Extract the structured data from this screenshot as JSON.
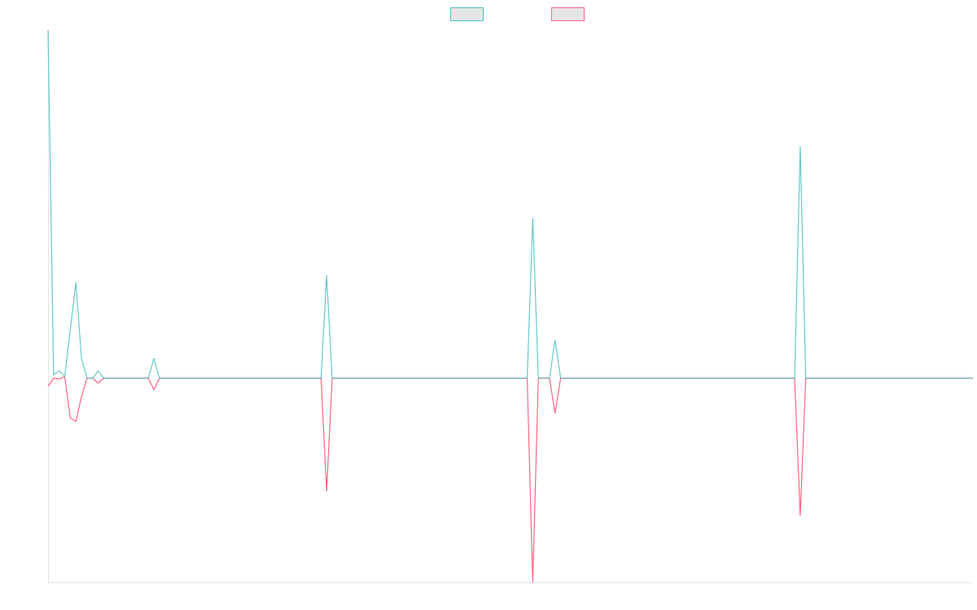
{
  "chart_data": {
    "type": "line",
    "ylim": [
      -251,
      428
    ],
    "legend": "top",
    "series": [
      {
        "color": "#4bc0c0",
        "values": [
          428,
          4,
          9,
          2,
          60,
          118,
          24,
          0,
          0,
          9,
          0,
          0,
          0,
          0,
          0,
          0,
          0,
          0,
          0,
          24,
          0,
          0,
          0,
          0,
          0,
          0,
          0,
          0,
          0,
          0,
          0,
          0,
          0,
          0,
          0,
          0,
          0,
          0,
          0,
          0,
          0,
          0,
          0,
          0,
          0,
          0,
          0,
          0,
          0,
          0,
          127,
          0,
          0,
          0,
          0,
          0,
          0,
          0,
          0,
          0,
          0,
          0,
          0,
          0,
          0,
          0,
          0,
          0,
          0,
          0,
          0,
          0,
          0,
          0,
          0,
          0,
          0,
          0,
          0,
          0,
          0,
          0,
          0,
          0,
          0,
          0,
          0,
          197,
          0,
          0,
          0,
          47,
          0,
          0,
          0,
          0,
          0,
          0,
          0,
          0,
          0,
          0,
          0,
          0,
          0,
          0,
          0,
          0,
          0,
          0,
          0,
          0,
          0,
          0,
          0,
          0,
          0,
          0,
          0,
          0,
          0,
          0,
          0,
          0,
          0,
          0,
          0,
          0,
          0,
          0,
          0,
          0,
          0,
          0,
          0,
          285,
          0,
          0,
          0,
          0,
          0,
          0,
          0,
          0,
          0,
          0,
          0,
          0,
          0,
          0,
          0,
          0,
          0,
          0,
          0,
          0,
          0,
          0,
          0,
          0,
          0,
          0,
          0,
          0,
          0,
          0,
          0
        ]
      },
      {
        "color": "#ff6384",
        "values": [
          -10,
          0,
          -1,
          2,
          -49,
          -53,
          -23,
          0,
          0,
          -6,
          0,
          0,
          0,
          0,
          0,
          0,
          0,
          0,
          0,
          -14,
          0,
          0,
          0,
          0,
          0,
          0,
          0,
          0,
          0,
          0,
          0,
          0,
          0,
          0,
          0,
          0,
          0,
          0,
          0,
          0,
          0,
          0,
          0,
          0,
          0,
          0,
          0,
          0,
          0,
          0,
          -139,
          0,
          0,
          0,
          0,
          0,
          0,
          0,
          0,
          0,
          0,
          0,
          0,
          0,
          0,
          0,
          0,
          0,
          0,
          0,
          0,
          0,
          0,
          0,
          0,
          0,
          0,
          0,
          0,
          0,
          0,
          0,
          0,
          0,
          0,
          0,
          0,
          -251,
          0,
          0,
          0,
          -43,
          0,
          0,
          0,
          0,
          0,
          0,
          0,
          0,
          0,
          0,
          0,
          0,
          0,
          0,
          0,
          0,
          0,
          0,
          0,
          0,
          0,
          0,
          0,
          0,
          0,
          0,
          0,
          0,
          0,
          0,
          0,
          0,
          0,
          0,
          0,
          0,
          0,
          0,
          0,
          0,
          0,
          0,
          0,
          -169,
          0,
          0,
          0,
          0,
          0,
          0,
          0,
          0,
          0,
          0,
          0,
          0,
          0,
          0,
          0,
          0,
          0,
          0,
          0,
          0,
          0,
          0,
          0,
          0,
          0,
          0,
          0,
          0,
          0,
          0,
          0
        ]
      }
    ]
  }
}
